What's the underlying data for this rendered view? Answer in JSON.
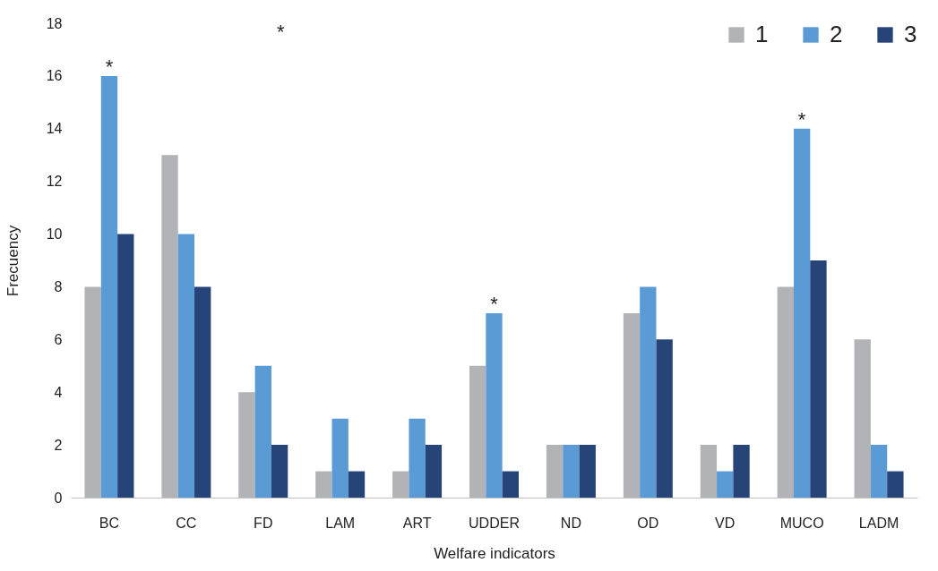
{
  "chart_data": {
    "type": "bar",
    "xlabel": "Welfare indicators",
    "ylabel": "Frecuency",
    "categories": [
      "BC",
      "CC",
      "FD",
      "LAM",
      "ART",
      "UDDER",
      "ND",
      "OD",
      "VD",
      "MUCO",
      "LADM"
    ],
    "series": [
      {
        "name": "1",
        "color": "#b1b3b6",
        "values": [
          8,
          13,
          4,
          1,
          1,
          5,
          2,
          7,
          2,
          8,
          6
        ]
      },
      {
        "name": "2",
        "color": "#5b9bd5",
        "values": [
          16,
          10,
          5,
          3,
          3,
          7,
          2,
          8,
          1,
          14,
          2
        ]
      },
      {
        "name": "3",
        "color": "#264478",
        "values": [
          10,
          8,
          2,
          1,
          2,
          1,
          2,
          6,
          2,
          9,
          1
        ]
      }
    ],
    "ylim": [
      0,
      18
    ],
    "yticks": [
      0,
      2,
      4,
      6,
      8,
      10,
      12,
      14,
      16,
      18
    ],
    "grid": false,
    "legend": "top right",
    "annotations": [
      {
        "text": "*",
        "x": "BC",
        "y": 16
      },
      "*",
      {
        "text": "*",
        "x": "UDDER",
        "y": 7
      },
      {
        "text": "*",
        "x": "MUCO",
        "y": 14
      }
    ]
  }
}
